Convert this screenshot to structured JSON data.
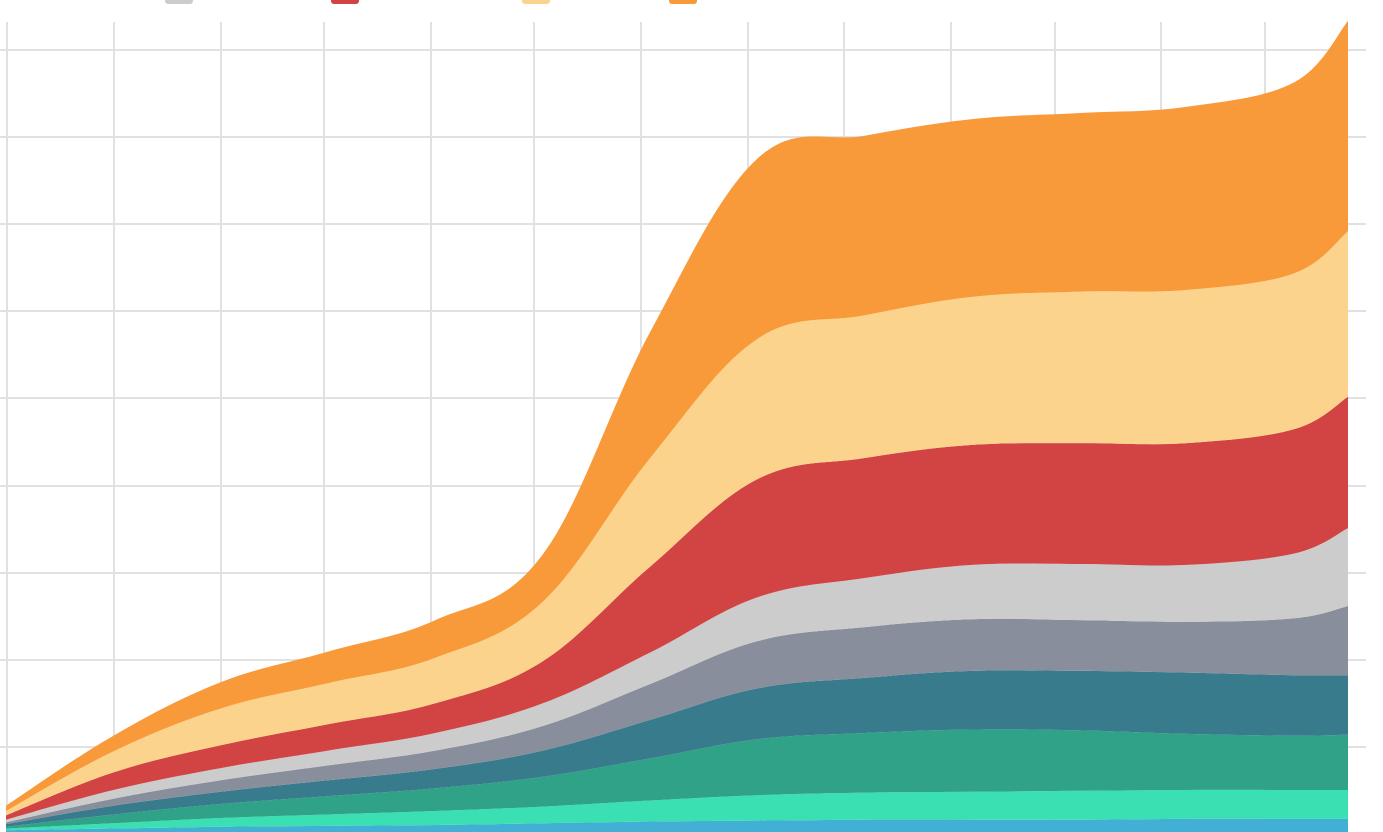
{
  "chart_data": {
    "type": "area",
    "stacked": true,
    "title": "",
    "xlabel": "",
    "ylabel": "",
    "grid": true,
    "legend": "top-left",
    "x": [
      0,
      2,
      4,
      6,
      8,
      10,
      12,
      14,
      16,
      18,
      20,
      22,
      24,
      25
    ],
    "ylim": [
      0,
      95
    ],
    "series": [
      {
        "name": "",
        "color": "#42b0d5",
        "values": [
          0.2,
          0.4,
          0.6,
          0.7,
          0.8,
          1.0,
          1.2,
          1.3,
          1.4,
          1.4,
          1.4,
          1.5,
          1.5,
          1.5
        ]
      },
      {
        "name": "",
        "color": "#3ae0b2",
        "values": [
          0.2,
          0.6,
          1.0,
          1.3,
          1.6,
          1.9,
          2.4,
          2.9,
          3.1,
          3.2,
          3.3,
          3.3,
          3.3,
          3.3
        ]
      },
      {
        "name": "",
        "color": "#30a287",
        "values": [
          0.2,
          1.0,
          1.6,
          2.1,
          2.6,
          3.4,
          4.8,
          6.4,
          6.8,
          7.1,
          6.9,
          6.4,
          6.2,
          6.3
        ]
      },
      {
        "name": "",
        "color": "#377b8c",
        "values": [
          0.3,
          1.0,
          1.4,
          1.8,
          2.2,
          3.0,
          4.4,
          5.8,
          6.3,
          6.7,
          6.8,
          7.0,
          6.9,
          6.8
        ]
      },
      {
        "name": "",
        "color": "#898e9c",
        "values": [
          0.2,
          0.8,
          1.3,
          1.7,
          2.1,
          2.8,
          4.1,
          5.4,
          5.8,
          5.9,
          5.8,
          5.8,
          6.5,
          7.9
        ]
      },
      {
        "name": "",
        "color": "#cccccc",
        "values": [
          0.3,
          1.0,
          1.4,
          1.7,
          2.0,
          2.6,
          3.6,
          5.0,
          5.6,
          6.2,
          6.4,
          6.5,
          7.4,
          8.9
        ]
      },
      {
        "name": "",
        "color": "#d14443",
        "values": [
          0.5,
          2.0,
          2.6,
          3.0,
          3.4,
          4.8,
          9.8,
          13.5,
          13.7,
          13.7,
          13.8,
          13.9,
          14.2,
          15.0
        ]
      },
      {
        "name": "",
        "color": "#fcd38c",
        "values": [
          0.5,
          2.4,
          4.2,
          4.7,
          5.2,
          6.8,
          12.4,
          16.0,
          16.3,
          16.9,
          17.3,
          17.5,
          17.8,
          18.9
        ]
      },
      {
        "name": "",
        "color": "#f89a3a",
        "values": [
          0.6,
          1.8,
          3.0,
          3.6,
          4.3,
          5.4,
          14.4,
          20.6,
          20.5,
          20.3,
          20.4,
          20.9,
          21.8,
          24.0
        ]
      }
    ]
  }
}
